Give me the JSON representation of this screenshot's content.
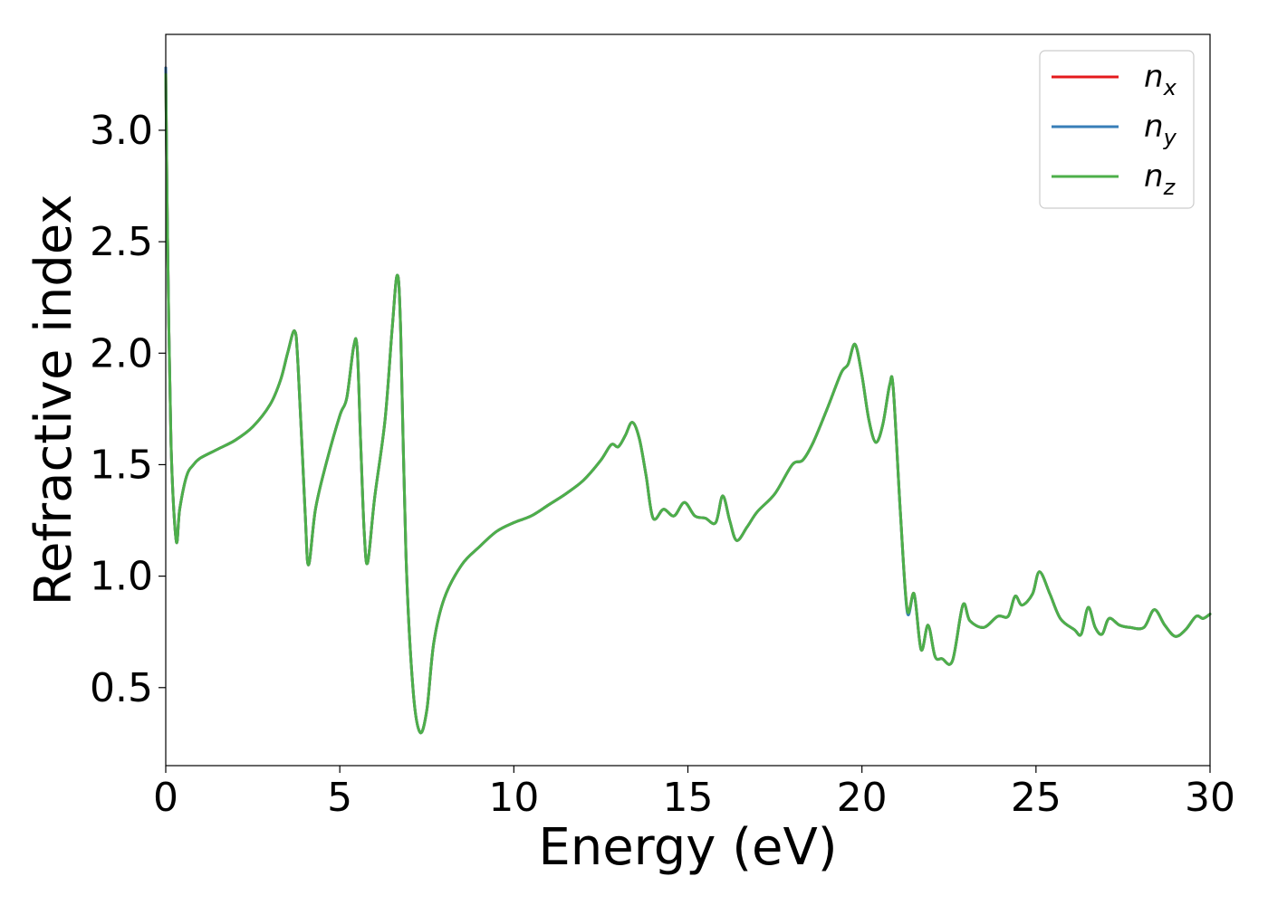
{
  "chart_data": {
    "type": "line",
    "title": "",
    "xlabel": "Energy (eV)",
    "ylabel": "Refractive index",
    "xlim": [
      0,
      30
    ],
    "ylim": [
      0.15,
      3.43
    ],
    "xticks": [
      0,
      5,
      10,
      15,
      20,
      25,
      30
    ],
    "xtick_labels": [
      "0",
      "5",
      "10",
      "15",
      "20",
      "25",
      "30"
    ],
    "yticks": [
      0.5,
      1.0,
      1.5,
      2.0,
      2.5,
      3.0
    ],
    "ytick_labels": [
      "0.5",
      "1.0",
      "1.5",
      "2.0",
      "2.5",
      "3.0"
    ],
    "grid": false,
    "legend_position": "top-right",
    "series": [
      {
        "name": "n_x",
        "label_base": "n",
        "label_sub": "x",
        "color": "#e41a1c",
        "x": [
          0,
          0.05,
          0.15,
          0.3,
          0.4,
          0.6,
          0.8,
          1.0,
          1.5,
          2.0,
          2.5,
          3.0,
          3.3,
          3.5,
          3.7,
          3.8,
          4.0,
          4.1,
          4.3,
          4.6,
          5.0,
          5.2,
          5.4,
          5.5,
          5.6,
          5.7,
          5.8,
          6.0,
          6.3,
          6.5,
          6.65,
          6.75,
          6.9,
          7.1,
          7.3,
          7.5,
          7.7,
          8.0,
          8.5,
          9.0,
          9.5,
          10.0,
          10.5,
          11.0,
          11.5,
          12.0,
          12.5,
          12.8,
          13.0,
          13.2,
          13.4,
          13.6,
          13.8,
          14.0,
          14.3,
          14.6,
          14.9,
          15.2,
          15.5,
          15.8,
          16.0,
          16.2,
          16.4,
          16.7,
          17.0,
          17.5,
          18.0,
          18.3,
          18.6,
          19.0,
          19.4,
          19.6,
          19.8,
          20.0,
          20.2,
          20.4,
          20.6,
          20.8,
          20.9,
          21.1,
          21.3,
          21.5,
          21.7,
          21.9,
          22.1,
          22.3,
          22.6,
          22.9,
          23.1,
          23.5,
          23.9,
          24.2,
          24.4,
          24.6,
          24.9,
          25.1,
          25.4,
          25.7,
          26.1,
          26.3,
          26.5,
          26.7,
          26.9,
          27.1,
          27.4,
          27.7,
          28.1,
          28.4,
          28.7,
          29.0,
          29.3,
          29.6,
          29.8,
          30.0
        ],
        "y": [
          3.28,
          2.55,
          1.6,
          1.16,
          1.3,
          1.45,
          1.5,
          1.53,
          1.57,
          1.61,
          1.67,
          1.77,
          1.88,
          2.0,
          2.1,
          1.95,
          1.3,
          1.05,
          1.3,
          1.5,
          1.72,
          1.8,
          2.03,
          2.02,
          1.6,
          1.2,
          1.06,
          1.35,
          1.7,
          2.1,
          2.35,
          2.1,
          1.1,
          0.5,
          0.3,
          0.4,
          0.7,
          0.9,
          1.05,
          1.13,
          1.2,
          1.24,
          1.27,
          1.32,
          1.37,
          1.43,
          1.52,
          1.59,
          1.58,
          1.63,
          1.69,
          1.62,
          1.45,
          1.26,
          1.3,
          1.27,
          1.33,
          1.27,
          1.26,
          1.24,
          1.36,
          1.25,
          1.16,
          1.22,
          1.29,
          1.37,
          1.5,
          1.52,
          1.6,
          1.75,
          1.91,
          1.95,
          2.04,
          1.9,
          1.7,
          1.6,
          1.68,
          1.86,
          1.84,
          1.3,
          0.85,
          0.92,
          0.67,
          0.78,
          0.64,
          0.63,
          0.62,
          0.87,
          0.8,
          0.77,
          0.82,
          0.82,
          0.91,
          0.87,
          0.92,
          1.02,
          0.92,
          0.81,
          0.76,
          0.74,
          0.86,
          0.77,
          0.74,
          0.81,
          0.78,
          0.77,
          0.77,
          0.85,
          0.78,
          0.73,
          0.76,
          0.82,
          0.81,
          0.83
        ]
      },
      {
        "name": "n_y",
        "label_base": "n",
        "label_sub": "y",
        "color": "#377eb8",
        "x": [
          0,
          0.05,
          0.15,
          0.3,
          0.4,
          0.6,
          0.8,
          1.0,
          1.5,
          2.0,
          2.5,
          3.0,
          3.3,
          3.5,
          3.7,
          3.8,
          4.0,
          4.1,
          4.3,
          4.6,
          5.0,
          5.2,
          5.4,
          5.5,
          5.6,
          5.7,
          5.8,
          6.0,
          6.3,
          6.5,
          6.65,
          6.75,
          6.9,
          7.1,
          7.3,
          7.5,
          7.7,
          8.0,
          8.5,
          9.0,
          9.5,
          10.0,
          10.5,
          11.0,
          11.5,
          12.0,
          12.5,
          12.8,
          13.0,
          13.2,
          13.4,
          13.6,
          13.8,
          14.0,
          14.3,
          14.6,
          14.9,
          15.2,
          15.5,
          15.8,
          16.0,
          16.2,
          16.4,
          16.7,
          17.0,
          17.5,
          18.0,
          18.3,
          18.6,
          19.0,
          19.4,
          19.6,
          19.8,
          20.0,
          20.2,
          20.4,
          20.6,
          20.8,
          20.9,
          21.1,
          21.3,
          21.5,
          21.7,
          21.9,
          22.1,
          22.3,
          22.6,
          22.9,
          23.1,
          23.5,
          23.9,
          24.2,
          24.4,
          24.6,
          24.9,
          25.1,
          25.4,
          25.7,
          26.1,
          26.3,
          26.5,
          26.7,
          26.9,
          27.1,
          27.4,
          27.7,
          28.1,
          28.4,
          28.7,
          29.0,
          29.3,
          29.6,
          29.8,
          30.0
        ],
        "y": [
          3.28,
          2.55,
          1.6,
          1.16,
          1.3,
          1.45,
          1.5,
          1.53,
          1.57,
          1.61,
          1.67,
          1.77,
          1.88,
          2.0,
          2.1,
          1.95,
          1.3,
          1.05,
          1.3,
          1.5,
          1.72,
          1.8,
          2.03,
          2.02,
          1.6,
          1.2,
          1.06,
          1.35,
          1.7,
          2.1,
          2.35,
          2.1,
          1.1,
          0.5,
          0.3,
          0.4,
          0.7,
          0.9,
          1.05,
          1.13,
          1.2,
          1.24,
          1.27,
          1.32,
          1.37,
          1.43,
          1.52,
          1.59,
          1.58,
          1.63,
          1.69,
          1.62,
          1.45,
          1.26,
          1.3,
          1.27,
          1.33,
          1.27,
          1.26,
          1.24,
          1.36,
          1.25,
          1.16,
          1.22,
          1.29,
          1.37,
          1.5,
          1.52,
          1.6,
          1.75,
          1.91,
          1.95,
          2.04,
          1.9,
          1.7,
          1.6,
          1.68,
          1.86,
          1.84,
          1.3,
          0.84,
          0.92,
          0.67,
          0.78,
          0.64,
          0.63,
          0.62,
          0.87,
          0.8,
          0.77,
          0.82,
          0.82,
          0.91,
          0.87,
          0.92,
          1.02,
          0.92,
          0.81,
          0.76,
          0.74,
          0.86,
          0.77,
          0.74,
          0.81,
          0.78,
          0.77,
          0.77,
          0.85,
          0.78,
          0.73,
          0.76,
          0.82,
          0.81,
          0.83
        ]
      },
      {
        "name": "n_z",
        "label_base": "n",
        "label_sub": "z",
        "color": "#4daf4a",
        "x": [
          0,
          0.05,
          0.15,
          0.3,
          0.4,
          0.6,
          0.8,
          1.0,
          1.5,
          2.0,
          2.5,
          3.0,
          3.3,
          3.5,
          3.7,
          3.8,
          4.0,
          4.1,
          4.3,
          4.6,
          5.0,
          5.2,
          5.4,
          5.5,
          5.6,
          5.7,
          5.8,
          6.0,
          6.3,
          6.5,
          6.65,
          6.75,
          6.9,
          7.1,
          7.3,
          7.5,
          7.7,
          8.0,
          8.5,
          9.0,
          9.5,
          10.0,
          10.5,
          11.0,
          11.5,
          12.0,
          12.5,
          12.8,
          13.0,
          13.2,
          13.4,
          13.6,
          13.8,
          14.0,
          14.3,
          14.6,
          14.9,
          15.2,
          15.5,
          15.8,
          16.0,
          16.2,
          16.4,
          16.7,
          17.0,
          17.5,
          18.0,
          18.3,
          18.6,
          19.0,
          19.4,
          19.6,
          19.8,
          20.0,
          20.2,
          20.4,
          20.6,
          20.8,
          20.9,
          21.1,
          21.3,
          21.5,
          21.7,
          21.9,
          22.1,
          22.3,
          22.6,
          22.9,
          23.1,
          23.5,
          23.9,
          24.2,
          24.4,
          24.6,
          24.9,
          25.1,
          25.4,
          25.7,
          26.1,
          26.3,
          26.5,
          26.7,
          26.9,
          27.1,
          27.4,
          27.7,
          28.1,
          28.4,
          28.7,
          29.0,
          29.3,
          29.6,
          29.8,
          30.0
        ],
        "y": [
          3.25,
          2.55,
          1.6,
          1.16,
          1.3,
          1.45,
          1.5,
          1.53,
          1.57,
          1.61,
          1.67,
          1.77,
          1.88,
          2.0,
          2.1,
          1.95,
          1.3,
          1.05,
          1.3,
          1.5,
          1.72,
          1.8,
          2.03,
          2.02,
          1.6,
          1.2,
          1.06,
          1.35,
          1.7,
          2.1,
          2.35,
          2.1,
          1.1,
          0.5,
          0.3,
          0.4,
          0.7,
          0.9,
          1.05,
          1.13,
          1.2,
          1.24,
          1.27,
          1.32,
          1.37,
          1.43,
          1.52,
          1.59,
          1.58,
          1.63,
          1.69,
          1.62,
          1.45,
          1.26,
          1.3,
          1.27,
          1.33,
          1.27,
          1.26,
          1.24,
          1.36,
          1.25,
          1.16,
          1.22,
          1.29,
          1.37,
          1.5,
          1.52,
          1.6,
          1.75,
          1.91,
          1.95,
          2.04,
          1.9,
          1.7,
          1.6,
          1.68,
          1.86,
          1.84,
          1.3,
          0.85,
          0.92,
          0.67,
          0.78,
          0.64,
          0.63,
          0.62,
          0.87,
          0.8,
          0.77,
          0.82,
          0.82,
          0.91,
          0.87,
          0.92,
          1.02,
          0.92,
          0.81,
          0.76,
          0.74,
          0.86,
          0.77,
          0.74,
          0.81,
          0.78,
          0.77,
          0.77,
          0.85,
          0.78,
          0.73,
          0.76,
          0.82,
          0.81,
          0.83
        ]
      }
    ]
  }
}
